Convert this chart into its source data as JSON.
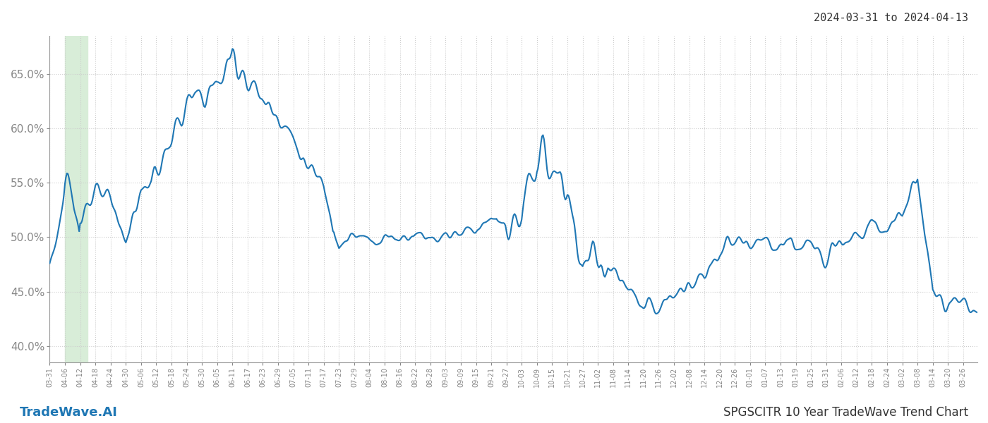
{
  "title_date": "2024-03-31 to 2024-04-13",
  "footer_left": "TradeWave.AI",
  "footer_right": "SPGSCITR 10 Year TradeWave Trend Chart",
  "ylim": [
    0.385,
    0.685
  ],
  "yticks": [
    0.4,
    0.45,
    0.5,
    0.55,
    0.6,
    0.65
  ],
  "ytick_labels": [
    "40.0%",
    "45.0%",
    "50.0%",
    "55.0%",
    "60.0%",
    "65.0%"
  ],
  "line_color": "#1f77b4",
  "line_width": 1.5,
  "background_color": "#ffffff",
  "grid_color": "#cccccc",
  "highlight_color": "#d8edd8",
  "x_labels": [
    "03-31",
    "04-06",
    "04-12",
    "04-18",
    "04-24",
    "04-30",
    "05-06",
    "05-12",
    "05-18",
    "05-24",
    "05-30",
    "06-05",
    "06-11",
    "06-17",
    "06-23",
    "06-29",
    "07-05",
    "07-11",
    "07-17",
    "07-23",
    "07-29",
    "08-04",
    "08-10",
    "08-16",
    "08-22",
    "08-28",
    "09-03",
    "09-09",
    "09-15",
    "09-21",
    "09-27",
    "10-03",
    "10-09",
    "10-15",
    "10-21",
    "10-27",
    "11-02",
    "11-08",
    "11-14",
    "11-20",
    "11-26",
    "12-02",
    "12-08",
    "12-14",
    "12-20",
    "12-26",
    "01-01",
    "01-07",
    "01-13",
    "01-19",
    "01-25",
    "01-31",
    "02-06",
    "02-12",
    "02-18",
    "02-24",
    "03-02",
    "03-08",
    "03-14",
    "03-20",
    "03-26"
  ]
}
